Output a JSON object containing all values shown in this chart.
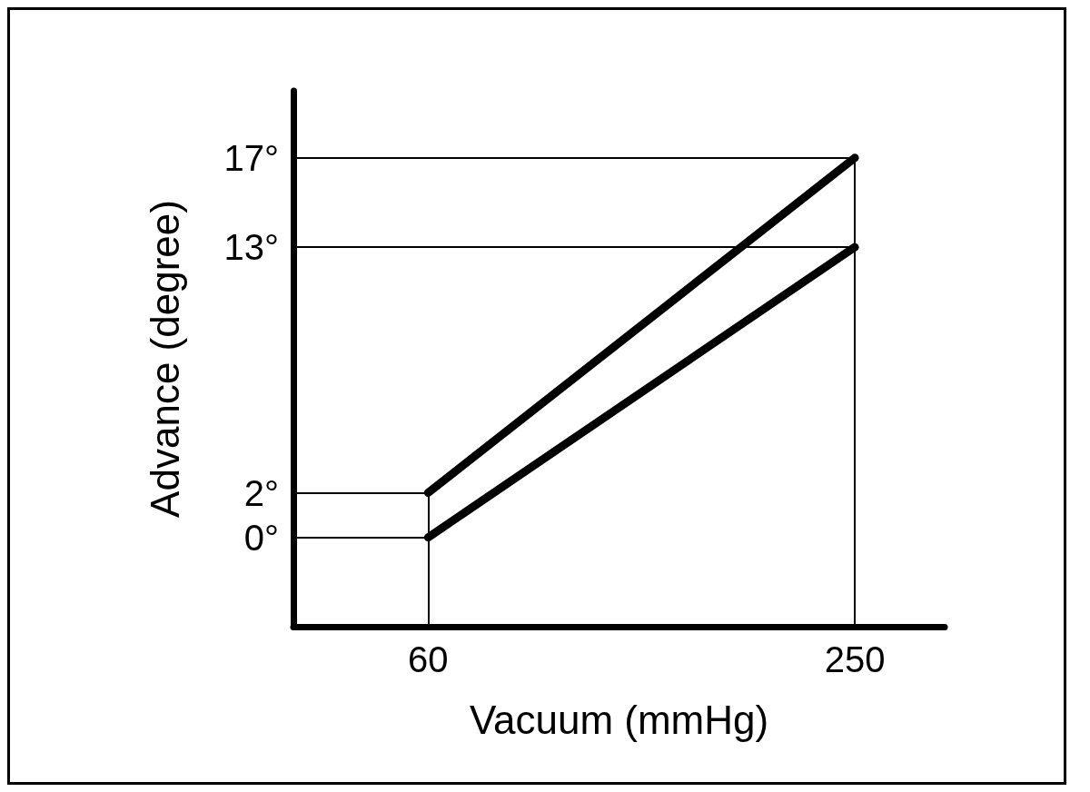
{
  "chart_data": {
    "type": "line",
    "xlabel": "Vacuum (mmHg)",
    "ylabel": "Advance (degree)",
    "x": [
      60,
      250
    ],
    "series": [
      {
        "values": [
          2,
          17
        ],
        "color": "#000000"
      },
      {
        "values": [
          0,
          13
        ],
        "color": "#000000"
      }
    ],
    "xlim": [
      0,
      290
    ],
    "xticks": [
      60,
      250
    ],
    "ylim": [
      -4,
      20
    ],
    "yticks": [
      {
        "value": 0,
        "label": "0°"
      },
      {
        "value": 2,
        "label": "2°"
      },
      {
        "value": 13,
        "label": "13°"
      },
      {
        "value": 17,
        "label": "17°"
      }
    ],
    "ref_lines": [
      {
        "axis": "y",
        "value": 0
      },
      {
        "axis": "y",
        "value": 2
      },
      {
        "axis": "y",
        "value": 13
      },
      {
        "axis": "y",
        "value": 17
      },
      {
        "axis": "x",
        "value": 60
      },
      {
        "axis": "x",
        "value": 250
      }
    ],
    "grid": false,
    "line_style": "solid"
  }
}
